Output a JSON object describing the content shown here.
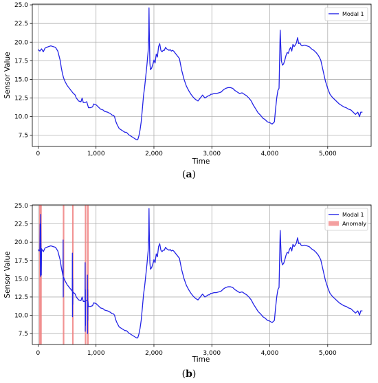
{
  "chart_data": [
    {
      "type": "line",
      "caption_label": "a",
      "xlabel": "Time",
      "ylabel": "Sensor Value",
      "xlim": [
        -100,
        5750
      ],
      "ylim": [
        6.0,
        25.1
      ],
      "xticks": [
        0,
        1000,
        2000,
        3000,
        4000,
        5000
      ],
      "xtick_labels": [
        "0",
        "1,000",
        "2,000",
        "3,000",
        "4,000",
        "5,000"
      ],
      "yticks": [
        7.5,
        10.0,
        12.5,
        15.0,
        17.5,
        20.0,
        22.5,
        25.0
      ],
      "ytick_labels": [
        "7.5",
        "10.0",
        "12.5",
        "15.0",
        "17.5",
        "20.0",
        "22.5",
        "25.0"
      ],
      "grid": true,
      "legend_position": "top-right",
      "legend": [
        "Modal 1"
      ],
      "series": [
        {
          "name": "Modal 1",
          "color": "#2424e6",
          "x": [
            0,
            30,
            60,
            90,
            120,
            150,
            180,
            220,
            260,
            300,
            340,
            380,
            400,
            420,
            440,
            460,
            480,
            500,
            530,
            560,
            600,
            640,
            660,
            700,
            740,
            760,
            780,
            810,
            840,
            870,
            900,
            940,
            960,
            1000,
            1040,
            1080,
            1120,
            1150,
            1200,
            1250,
            1280,
            1300,
            1320,
            1340,
            1360,
            1380,
            1400,
            1420,
            1440,
            1460,
            1480,
            1500,
            1520,
            1540,
            1560,
            1580,
            1600,
            1640,
            1680,
            1700,
            1720,
            1740,
            1760,
            1780,
            1800,
            1820,
            1840,
            1860,
            1880,
            1900,
            1910,
            1915,
            1920,
            1930,
            1940,
            1960,
            1980,
            2000,
            2020,
            2040,
            2060,
            2080,
            2100,
            2120,
            2140,
            2160,
            2180,
            2200,
            2220,
            2240,
            2260,
            2280,
            2300,
            2320,
            2340,
            2360,
            2380,
            2400,
            2440,
            2480,
            2520,
            2560,
            2600,
            2640,
            2680,
            2720,
            2760,
            2800,
            2840,
            2880,
            2920,
            2940,
            2960,
            2980,
            3000,
            3040,
            3080,
            3120,
            3160,
            3200,
            3240,
            3280,
            3320,
            3360,
            3400,
            3440,
            3480,
            3520,
            3560,
            3600,
            3640,
            3680,
            3720,
            3760,
            3800,
            3840,
            3880,
            3920,
            3960,
            4000,
            4040,
            4080,
            4100,
            4120,
            4140,
            4160,
            4180,
            4200,
            4220,
            4240,
            4260,
            4280,
            4300,
            4320,
            4340,
            4360,
            4380,
            4400,
            4420,
            4440,
            4460,
            4480,
            4500,
            4520,
            4540,
            4560,
            4600,
            4640,
            4680,
            4720,
            4760,
            4800,
            4840,
            4880,
            4920,
            4960,
            5000,
            5040,
            5080,
            5120,
            5160,
            5200,
            5240,
            5280,
            5320,
            5360,
            5400,
            5440,
            5480,
            5520,
            5550,
            5570,
            5600
          ],
          "y": [
            19.0,
            18.8,
            19.1,
            18.7,
            19.2,
            19.3,
            19.4,
            19.5,
            19.4,
            19.3,
            18.8,
            17.6,
            16.6,
            15.8,
            15.2,
            14.8,
            14.5,
            14.2,
            13.9,
            13.6,
            13.2,
            12.9,
            12.5,
            12.1,
            12.0,
            12.5,
            11.9,
            11.9,
            12.0,
            11.2,
            11.2,
            11.3,
            11.7,
            11.6,
            11.3,
            11.0,
            10.9,
            10.7,
            10.6,
            10.4,
            10.2,
            10.2,
            10.0,
            9.4,
            9.0,
            8.7,
            8.4,
            8.3,
            8.2,
            8.1,
            8.0,
            7.9,
            7.9,
            7.8,
            7.6,
            7.5,
            7.4,
            7.2,
            7.0,
            6.9,
            6.9,
            7.4,
            8.2,
            9.3,
            11.0,
            12.8,
            14.0,
            15.5,
            17.0,
            18.8,
            21.0,
            24.6,
            21.5,
            17.2,
            16.3,
            16.5,
            17.0,
            17.6,
            17.2,
            18.4,
            18.0,
            19.4,
            19.8,
            18.9,
            18.7,
            18.9,
            18.9,
            19.3,
            19.1,
            19.0,
            18.9,
            19.0,
            18.8,
            18.9,
            18.8,
            18.6,
            18.4,
            18.2,
            17.8,
            16.2,
            15.0,
            14.1,
            13.5,
            13.0,
            12.6,
            12.3,
            12.1,
            12.5,
            12.9,
            12.5,
            12.7,
            12.8,
            12.8,
            13.0,
            13.0,
            13.1,
            13.1,
            13.2,
            13.3,
            13.6,
            13.8,
            13.9,
            13.9,
            13.8,
            13.5,
            13.3,
            13.1,
            13.2,
            13.0,
            12.8,
            12.5,
            12.1,
            11.5,
            11.0,
            10.5,
            10.2,
            9.8,
            9.6,
            9.3,
            9.2,
            9.0,
            9.3,
            11.0,
            12.5,
            13.5,
            13.8,
            21.6,
            17.5,
            16.9,
            17.1,
            17.6,
            18.2,
            18.6,
            18.5,
            19.0,
            19.3,
            18.8,
            19.7,
            19.4,
            19.6,
            19.9,
            20.6,
            19.8,
            19.9,
            19.6,
            19.5,
            19.6,
            19.5,
            19.4,
            19.1,
            18.9,
            18.6,
            18.2,
            17.6,
            16.2,
            14.8,
            13.8,
            13.0,
            12.6,
            12.3,
            12.0,
            11.7,
            11.5,
            11.3,
            11.2,
            11.0,
            10.9,
            10.6,
            10.3,
            10.6,
            10.0,
            10.6,
            10.6
          ]
        }
      ]
    },
    {
      "type": "line",
      "caption_label": "b",
      "xlabel": "Time",
      "ylabel": "Sensor Value",
      "xlim": [
        -100,
        5750
      ],
      "ylim": [
        6.0,
        25.1
      ],
      "xticks": [
        0,
        1000,
        2000,
        3000,
        4000,
        5000
      ],
      "xtick_labels": [
        "0",
        "1,000",
        "2,000",
        "3,000",
        "4,000",
        "5,000"
      ],
      "yticks": [
        7.5,
        10.0,
        12.5,
        15.0,
        17.5,
        20.0,
        22.5,
        25.0
      ],
      "ytick_labels": [
        "7.5",
        "10.0",
        "12.5",
        "15.0",
        "17.5",
        "20.0",
        "22.5",
        "25.0"
      ],
      "grid": true,
      "legend_position": "top-right",
      "legend": [
        "Modal 1",
        "Anomaly"
      ],
      "anomaly_color": "#f08080",
      "anomaly_x": [
        30,
        50,
        440,
        600,
        820,
        860
      ],
      "series": [
        {
          "name": "Modal 1",
          "color": "#2424e6",
          "x": [
            0,
            20,
            30,
            35,
            40,
            45,
            50,
            55,
            60,
            90,
            120,
            150,
            180,
            220,
            260,
            300,
            340,
            380,
            400,
            420,
            430,
            432,
            434,
            436,
            440,
            460,
            480,
            500,
            530,
            560,
            580,
            590,
            592,
            594,
            596,
            598,
            600,
            640,
            660,
            700,
            740,
            760,
            780,
            800,
            810,
            812,
            814,
            816,
            818,
            820,
            840,
            850,
            852,
            854,
            856,
            858,
            860,
            870,
            900,
            940,
            960,
            1000,
            1040,
            1080,
            1120,
            1150,
            1200,
            1250,
            1280,
            1300,
            1320,
            1340,
            1360,
            1380,
            1400,
            1420,
            1440,
            1460,
            1480,
            1500,
            1520,
            1540,
            1560,
            1580,
            1600,
            1640,
            1680,
            1700,
            1720,
            1740,
            1760,
            1780,
            1800,
            1820,
            1840,
            1860,
            1880,
            1900,
            1910,
            1915,
            1920,
            1930,
            1940,
            1960,
            1980,
            2000,
            2020,
            2040,
            2060,
            2080,
            2100,
            2120,
            2140,
            2160,
            2180,
            2200,
            2220,
            2240,
            2260,
            2280,
            2300,
            2320,
            2340,
            2360,
            2380,
            2400,
            2440,
            2480,
            2520,
            2560,
            2600,
            2640,
            2680,
            2720,
            2760,
            2800,
            2840,
            2880,
            2920,
            2940,
            2960,
            2980,
            3000,
            3040,
            3080,
            3120,
            3160,
            3200,
            3240,
            3280,
            3320,
            3360,
            3400,
            3440,
            3480,
            3520,
            3560,
            3600,
            3640,
            3680,
            3720,
            3760,
            3800,
            3840,
            3880,
            3920,
            3960,
            4000,
            4040,
            4080,
            4100,
            4120,
            4140,
            4160,
            4180,
            4200,
            4220,
            4240,
            4260,
            4280,
            4300,
            4320,
            4340,
            4360,
            4380,
            4400,
            4420,
            4440,
            4460,
            4480,
            4500,
            4520,
            4540,
            4560,
            4600,
            4640,
            4680,
            4720,
            4760,
            4800,
            4840,
            4880,
            4920,
            4960,
            5000,
            5040,
            5080,
            5120,
            5160,
            5200,
            5240,
            5280,
            5320,
            5360,
            5400,
            5440,
            5480,
            5520,
            5550,
            5570,
            5600
          ],
          "y": [
            19.0,
            18.8,
            19.0,
            22.5,
            15.3,
            23.8,
            18.8,
            15.5,
            19.1,
            18.7,
            19.2,
            19.3,
            19.4,
            19.5,
            19.4,
            19.3,
            18.8,
            17.6,
            16.6,
            15.8,
            15.4,
            20.3,
            12.5,
            15.2,
            15.2,
            14.8,
            14.5,
            14.2,
            13.9,
            13.6,
            13.4,
            13.3,
            18.5,
            9.8,
            15.0,
            11.5,
            13.2,
            12.9,
            12.5,
            12.1,
            12.0,
            12.5,
            11.9,
            11.9,
            11.9,
            17.2,
            7.8,
            13.5,
            8.6,
            12.0,
            12.0,
            12.0,
            15.5,
            7.5,
            13.5,
            9.3,
            11.9,
            11.2,
            11.2,
            11.3,
            11.7,
            11.6,
            11.3,
            11.0,
            10.9,
            10.7,
            10.6,
            10.4,
            10.2,
            10.2,
            10.0,
            9.4,
            9.0,
            8.7,
            8.4,
            8.3,
            8.2,
            8.1,
            8.0,
            7.9,
            7.9,
            7.8,
            7.6,
            7.5,
            7.4,
            7.2,
            7.0,
            6.9,
            6.9,
            7.4,
            8.2,
            9.3,
            11.0,
            12.8,
            14.0,
            15.5,
            17.0,
            18.8,
            21.0,
            24.6,
            21.5,
            17.2,
            16.3,
            16.5,
            17.0,
            17.6,
            17.2,
            18.4,
            18.0,
            19.4,
            19.8,
            18.9,
            18.7,
            18.9,
            18.9,
            19.3,
            19.1,
            19.0,
            18.9,
            19.0,
            18.8,
            18.9,
            18.8,
            18.6,
            18.4,
            18.2,
            17.8,
            16.2,
            15.0,
            14.1,
            13.5,
            13.0,
            12.6,
            12.3,
            12.1,
            12.5,
            12.9,
            12.5,
            12.7,
            12.8,
            12.8,
            13.0,
            13.0,
            13.1,
            13.1,
            13.2,
            13.3,
            13.6,
            13.8,
            13.9,
            13.9,
            13.8,
            13.5,
            13.3,
            13.1,
            13.2,
            13.0,
            12.8,
            12.5,
            12.1,
            11.5,
            11.0,
            10.5,
            10.2,
            9.8,
            9.6,
            9.3,
            9.2,
            9.0,
            9.3,
            11.0,
            12.5,
            13.5,
            13.8,
            21.6,
            17.5,
            16.9,
            17.1,
            17.6,
            18.2,
            18.6,
            18.5,
            19.0,
            19.3,
            18.8,
            19.7,
            19.4,
            19.6,
            19.9,
            20.6,
            19.8,
            19.9,
            19.6,
            19.5,
            19.6,
            19.5,
            19.4,
            19.1,
            18.9,
            18.6,
            18.2,
            17.6,
            16.2,
            14.8,
            13.8,
            13.0,
            12.6,
            12.3,
            12.0,
            11.7,
            11.5,
            11.3,
            11.2,
            11.0,
            10.9,
            10.6,
            10.3,
            10.6,
            10.0,
            10.6,
            10.6
          ]
        }
      ]
    }
  ]
}
